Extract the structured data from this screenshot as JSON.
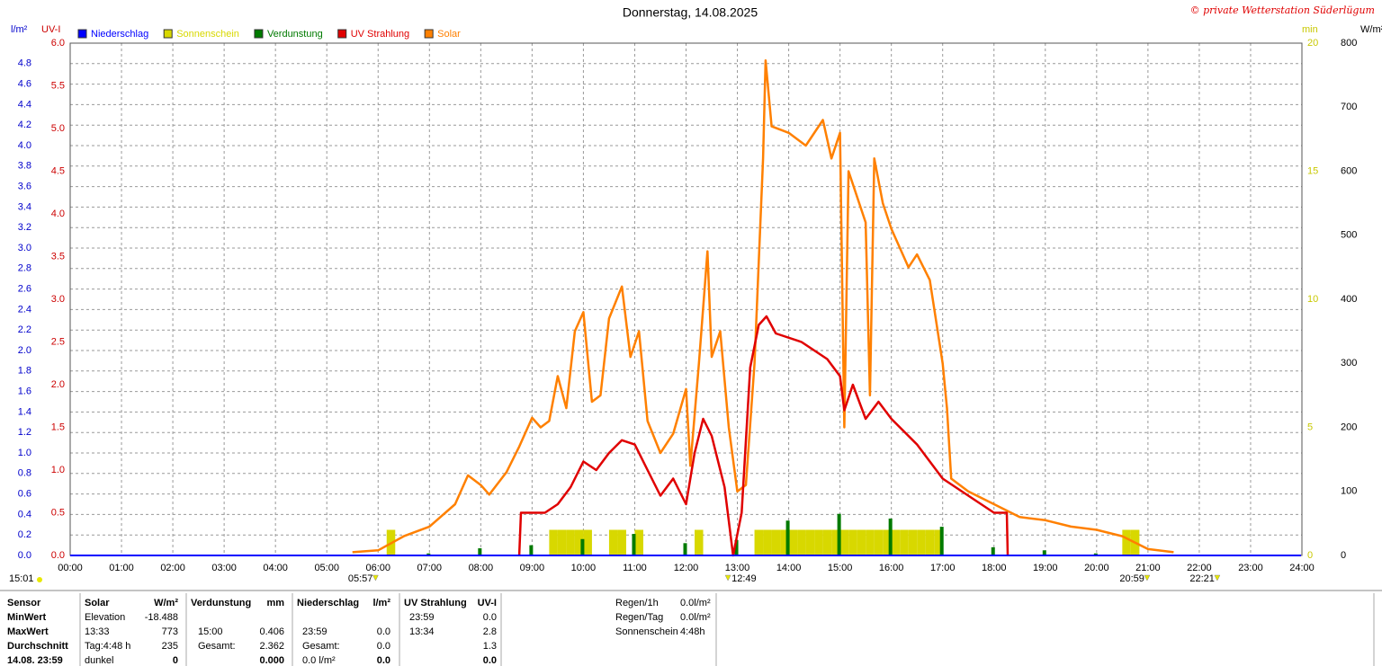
{
  "chart_data": {
    "type": "combo",
    "title": "Donnerstag, 14.08.2025",
    "copyright": "© private Wetterstation Süderlügum",
    "xlim": [
      "00:00",
      "24:00"
    ],
    "xticks": [
      "00:00",
      "01:00",
      "02:00",
      "03:00",
      "04:00",
      "05:00",
      "06:00",
      "07:00",
      "08:00",
      "09:00",
      "10:00",
      "11:00",
      "12:00",
      "13:00",
      "14:00",
      "15:00",
      "16:00",
      "17:00",
      "18:00",
      "19:00",
      "20:00",
      "21:00",
      "22:00",
      "23:00",
      "24:00"
    ],
    "axes": {
      "l": {
        "label": "l/m²",
        "color": "#0000cc",
        "lim": [
          0,
          5.0
        ],
        "ticks": [
          {
            "value": 0,
            "label": "0.0"
          },
          {
            "value": 0.2,
            "label": "0.2"
          },
          {
            "value": 0.4,
            "label": "0.4"
          },
          {
            "value": 0.6,
            "label": "0.6"
          },
          {
            "value": 0.8,
            "label": "0.8"
          },
          {
            "value": 1.0,
            "label": "1.0"
          },
          {
            "value": 1.2,
            "label": "1.2"
          },
          {
            "value": 1.4,
            "label": "1.4"
          },
          {
            "value": 1.6,
            "label": "1.6"
          },
          {
            "value": 1.8,
            "label": "1.8"
          },
          {
            "value": 2.0,
            "label": "2.0"
          },
          {
            "value": 2.2,
            "label": "2.2"
          },
          {
            "value": 2.4,
            "label": "2.4"
          },
          {
            "value": 2.6,
            "label": "2.6"
          },
          {
            "value": 2.8,
            "label": "2.8"
          },
          {
            "value": 3.0,
            "label": "3.0"
          },
          {
            "value": 3.2,
            "label": "3.2"
          },
          {
            "value": 3.4,
            "label": "3.4"
          },
          {
            "value": 3.6,
            "label": "3.6"
          },
          {
            "value": 3.8,
            "label": "3.8"
          },
          {
            "value": 4.0,
            "label": "4.0"
          },
          {
            "value": 4.2,
            "label": "4.2"
          },
          {
            "value": 4.4,
            "label": "4.4"
          },
          {
            "value": 4.6,
            "label": "4.6"
          },
          {
            "value": 4.8,
            "label": "4.8"
          }
        ]
      },
      "uv": {
        "label": "UV-I",
        "color": "#cc0000",
        "lim": [
          0,
          6.0
        ],
        "ticks": [
          {
            "value": 0,
            "label": "0.0"
          },
          {
            "value": 0.5,
            "label": "0.5"
          },
          {
            "value": 1.0,
            "label": "1.0"
          },
          {
            "value": 1.5,
            "label": "1.5"
          },
          {
            "value": 2.0,
            "label": "2.0"
          },
          {
            "value": 2.5,
            "label": "2.5"
          },
          {
            "value": 3.0,
            "label": "3.0"
          },
          {
            "value": 3.5,
            "label": "3.5"
          },
          {
            "value": 4.0,
            "label": "4.0"
          },
          {
            "value": 4.5,
            "label": "4.5"
          },
          {
            "value": 5.0,
            "label": "5.0"
          },
          {
            "value": 5.5,
            "label": "5.5"
          },
          {
            "value": 6.0,
            "label": "6.0"
          }
        ]
      },
      "min": {
        "label": "min",
        "color": "#c8c800",
        "lim": [
          0,
          20
        ],
        "ticks": [
          0,
          5,
          10,
          15,
          20
        ]
      },
      "w": {
        "label": "W/m²",
        "color": "#000000",
        "lim": [
          0,
          800
        ],
        "ticks": [
          0,
          100,
          200,
          300,
          400,
          500,
          600,
          700,
          800
        ]
      }
    },
    "series": [
      {
        "name": "Niederschlag",
        "color": "#0000ff",
        "axis": "l",
        "kind": "line",
        "x": [
          "00:00",
          "23:59"
        ],
        "values": [
          0,
          0
        ]
      },
      {
        "name": "Sonnenschein",
        "color": "#d8d800",
        "axis": "min",
        "kind": "bar",
        "x": [
          "06:10",
          "09:20",
          "09:30",
          "09:40",
          "09:50",
          "10:00",
          "10:30",
          "10:40",
          "11:00",
          "12:10",
          "13:20",
          "13:30",
          "13:40",
          "13:50",
          "14:00",
          "14:10",
          "14:20",
          "14:30",
          "14:40",
          "14:50",
          "15:00",
          "15:10",
          "15:20",
          "15:30",
          "15:40",
          "15:50",
          "16:00",
          "16:10",
          "16:20",
          "16:30",
          "16:40",
          "16:50",
          "20:30",
          "20:40"
        ],
        "values": [
          1,
          1,
          1,
          1,
          1,
          1,
          1,
          1,
          1,
          1,
          1,
          1,
          1,
          1,
          1,
          1,
          1,
          1,
          1,
          1,
          1,
          1,
          1,
          1,
          1,
          1,
          1,
          1,
          1,
          1,
          1,
          1,
          1,
          1
        ]
      },
      {
        "name": "Verdunstung",
        "color": "#007a00",
        "axis": "l",
        "kind": "thinbar",
        "x": [
          "07:00",
          "08:00",
          "09:00",
          "10:00",
          "11:00",
          "12:00",
          "13:00",
          "14:00",
          "15:00",
          "16:00",
          "17:00",
          "18:00",
          "19:00",
          "20:00"
        ],
        "values": [
          0.02,
          0.07,
          0.1,
          0.16,
          0.21,
          0.12,
          0.15,
          0.34,
          0.406,
          0.36,
          0.28,
          0.08,
          0.05,
          0.02
        ]
      },
      {
        "name": "UV Strahlung",
        "color": "#e00000",
        "axis": "uv",
        "kind": "line",
        "x": [
          "08:45",
          "08:47",
          "09:15",
          "09:30",
          "09:45",
          "10:00",
          "10:15",
          "10:30",
          "10:45",
          "11:00",
          "11:15",
          "11:30",
          "11:45",
          "12:00",
          "12:10",
          "12:20",
          "12:30",
          "12:45",
          "12:55",
          "13:05",
          "13:15",
          "13:25",
          "13:34",
          "13:45",
          "14:15",
          "14:45",
          "15:00",
          "15:05",
          "15:15",
          "15:30",
          "15:45",
          "16:00",
          "16:30",
          "17:00",
          "17:30",
          "18:00",
          "18:15",
          "18:16"
        ],
        "values": [
          0,
          0.5,
          0.5,
          0.6,
          0.8,
          1.1,
          1.0,
          1.2,
          1.35,
          1.3,
          1.0,
          0.7,
          0.9,
          0.6,
          1.2,
          1.6,
          1.4,
          0.8,
          0,
          0.5,
          2.2,
          2.7,
          2.8,
          2.6,
          2.5,
          2.3,
          2.1,
          1.7,
          2.0,
          1.6,
          1.8,
          1.6,
          1.3,
          0.9,
          0.7,
          0.5,
          0.5,
          0
        ]
      },
      {
        "name": "Solar",
        "color": "#ff8000",
        "axis": "w",
        "kind": "line",
        "x": [
          "05:30",
          "06:00",
          "06:30",
          "07:00",
          "07:30",
          "07:45",
          "08:00",
          "08:10",
          "08:30",
          "08:45",
          "09:00",
          "09:10",
          "09:20",
          "09:30",
          "09:40",
          "09:50",
          "10:00",
          "10:10",
          "10:20",
          "10:30",
          "10:45",
          "10:55",
          "11:05",
          "11:15",
          "11:30",
          "11:45",
          "12:00",
          "12:05",
          "12:15",
          "12:25",
          "12:30",
          "12:40",
          "12:50",
          "13:00",
          "13:10",
          "13:20",
          "13:30",
          "13:33",
          "13:40",
          "14:00",
          "14:20",
          "14:40",
          "14:50",
          "15:00",
          "15:05",
          "15:10",
          "15:30",
          "15:35",
          "15:40",
          "15:50",
          "16:00",
          "16:20",
          "16:30",
          "16:45",
          "17:00",
          "17:05",
          "17:10",
          "17:30",
          "18:00",
          "18:30",
          "19:00",
          "19:30",
          "20:00",
          "20:30",
          "21:00",
          "21:30"
        ],
        "values": [
          5,
          8,
          30,
          45,
          80,
          125,
          110,
          95,
          130,
          170,
          215,
          200,
          210,
          280,
          230,
          350,
          380,
          240,
          250,
          370,
          420,
          310,
          350,
          210,
          160,
          190,
          260,
          140,
          300,
          475,
          310,
          350,
          200,
          100,
          110,
          300,
          620,
          773,
          670,
          660,
          640,
          680,
          620,
          660,
          200,
          600,
          520,
          250,
          620,
          550,
          510,
          450,
          470,
          430,
          300,
          230,
          120,
          100,
          80,
          60,
          55,
          45,
          40,
          30,
          10,
          5
        ]
      }
    ],
    "time_left": "15:01",
    "time_markers": [
      "05:57",
      "12:49",
      "20:59",
      "22:21"
    ]
  },
  "stats": {
    "sensor": {
      "header": "Sensor",
      "rows": [
        "MinWert",
        "MaxWert",
        "Durchschnitt",
        "14.08. 23:59"
      ]
    },
    "groups": [
      {
        "header": "Solar",
        "unit": "W/m²",
        "rows": [
          [
            "Elevation",
            "-18.488"
          ],
          [
            "13:33",
            "773"
          ],
          [
            "Tag:4:48 h",
            "235"
          ],
          [
            "dunkel",
            "0"
          ]
        ]
      },
      {
        "header": "Verdunstung",
        "unit": "mm",
        "rows": [
          [
            null,
            null
          ],
          [
            "15:00",
            "0.406"
          ],
          [
            "Gesamt:",
            "2.362"
          ],
          [
            null,
            "0.000"
          ]
        ]
      },
      {
        "header": "Niederschlag",
        "unit": "l/m²",
        "rows": [
          [
            null,
            null
          ],
          [
            "23:59",
            "0.0"
          ],
          [
            "Gesamt:",
            "0.0"
          ],
          [
            "0.0 l/m²",
            "0.0"
          ]
        ]
      },
      {
        "header": "UV Strahlung",
        "unit": "UV-I",
        "rows": [
          [
            "23:59",
            "0.0"
          ],
          [
            "13:34",
            "2.8"
          ],
          [
            null,
            "1.3"
          ],
          [
            null,
            "0.0"
          ]
        ]
      }
    ],
    "extra": [
      [
        "Regen/1h",
        "0.0l/m²"
      ],
      [
        "Regen/Tag",
        "0.0l/m²"
      ],
      [
        "Sonnenschein",
        "4:48h"
      ]
    ]
  }
}
